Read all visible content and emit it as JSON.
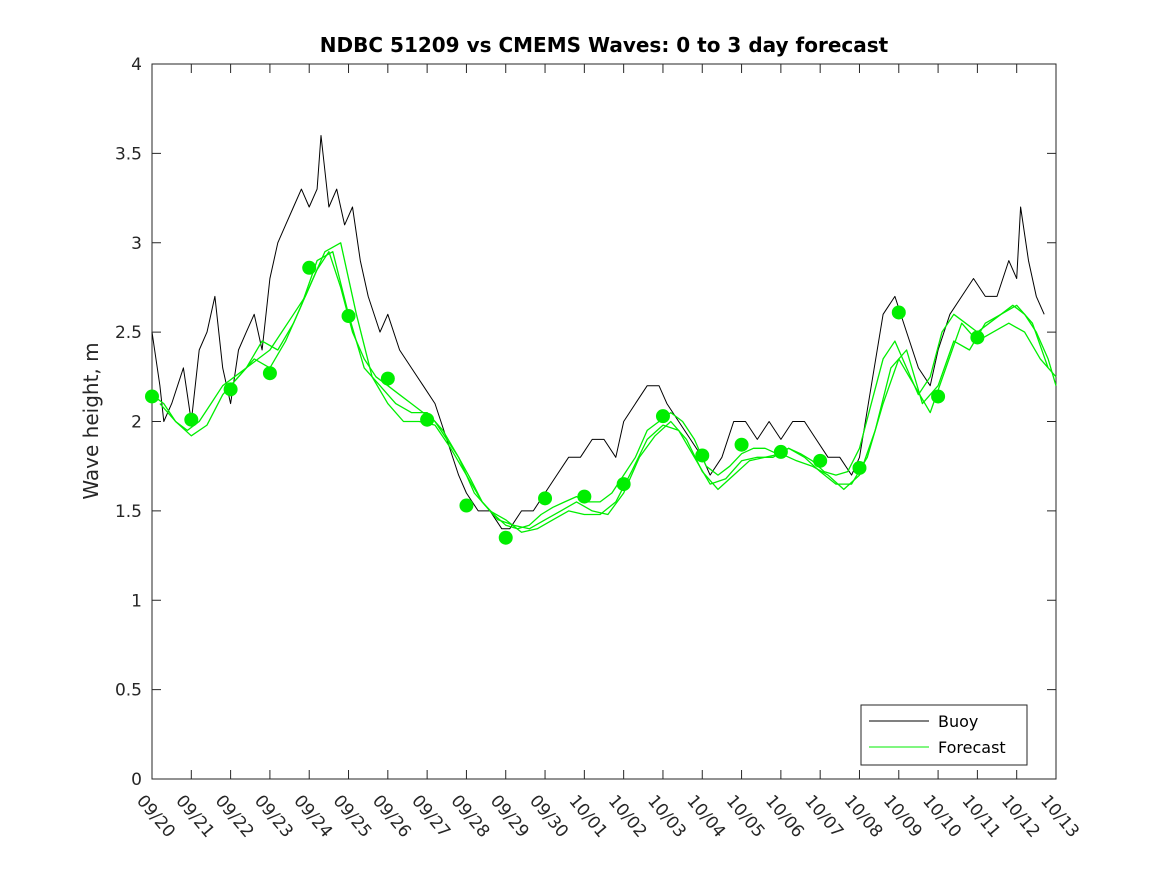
{
  "chart_data": {
    "type": "line",
    "title": "NDBC 51209 vs CMEMS Waves: 0 to 3 day forecast",
    "xlabel": "",
    "ylabel": "Wave height, m",
    "ylim": [
      0,
      4
    ],
    "y_ticks": [
      "0",
      "0.5",
      "1",
      "1.5",
      "2",
      "2.5",
      "3",
      "3.5",
      "4"
    ],
    "x_ticks": [
      "09/20",
      "09/21",
      "09/22",
      "09/23",
      "09/24",
      "09/25",
      "09/26",
      "09/27",
      "09/28",
      "09/29",
      "09/30",
      "10/01",
      "10/02",
      "10/03",
      "10/04",
      "10/05",
      "10/06",
      "10/07",
      "10/08",
      "10/09",
      "10/10",
      "10/11",
      "10/12",
      "10/13"
    ],
    "x_unit": "day index from 09/20",
    "xlim": [
      0,
      23
    ],
    "grid": false,
    "legend": {
      "placement": "bottom-right",
      "entries": [
        "Buoy",
        "Forecast"
      ]
    },
    "colors": {
      "buoy": "#000000",
      "forecast": "#00ee00",
      "axis": "#262626"
    },
    "series": [
      {
        "name": "Buoy",
        "x": [
          0,
          0.2,
          0.3,
          0.5,
          0.8,
          1.0,
          1.2,
          1.4,
          1.6,
          1.8,
          2.0,
          2.2,
          2.4,
          2.6,
          2.8,
          3.0,
          3.2,
          3.4,
          3.6,
          3.8,
          4.0,
          4.2,
          4.3,
          4.5,
          4.7,
          4.9,
          5.1,
          5.3,
          5.5,
          5.8,
          6.0,
          6.3,
          6.6,
          6.9,
          7.2,
          7.5,
          7.8,
          8.0,
          8.3,
          8.6,
          8.9,
          9.1,
          9.4,
          9.7,
          10.0,
          10.3,
          10.6,
          10.9,
          11.2,
          11.5,
          11.8,
          12.0,
          12.3,
          12.6,
          12.9,
          13.1,
          13.4,
          13.7,
          14.0,
          14.2,
          14.5,
          14.8,
          15.1,
          15.4,
          15.7,
          16.0,
          16.3,
          16.6,
          16.9,
          17.2,
          17.5,
          17.8,
          18.0,
          18.3,
          18.6,
          18.9,
          19.2,
          19.5,
          19.8,
          20.0,
          20.3,
          20.6,
          20.9,
          21.2,
          21.5,
          21.8,
          22.0,
          22.1,
          22.3,
          22.5,
          22.7
        ],
        "values": [
          2.5,
          2.2,
          2.0,
          2.1,
          2.3,
          2.0,
          2.4,
          2.5,
          2.7,
          2.3,
          2.1,
          2.4,
          2.5,
          2.6,
          2.4,
          2.8,
          3.0,
          3.1,
          3.2,
          3.3,
          3.2,
          3.3,
          3.6,
          3.2,
          3.3,
          3.1,
          3.2,
          2.9,
          2.7,
          2.5,
          2.6,
          2.4,
          2.3,
          2.2,
          2.1,
          1.9,
          1.7,
          1.6,
          1.5,
          1.5,
          1.4,
          1.4,
          1.5,
          1.5,
          1.6,
          1.7,
          1.8,
          1.8,
          1.9,
          1.9,
          1.8,
          2.0,
          2.1,
          2.2,
          2.2,
          2.1,
          2.0,
          1.9,
          1.8,
          1.7,
          1.8,
          2.0,
          2.0,
          1.9,
          2.0,
          1.9,
          2.0,
          2.0,
          1.9,
          1.8,
          1.8,
          1.7,
          1.8,
          2.2,
          2.6,
          2.7,
          2.5,
          2.3,
          2.2,
          2.4,
          2.6,
          2.7,
          2.8,
          2.7,
          2.7,
          2.9,
          2.8,
          3.2,
          2.9,
          2.7,
          2.6
        ]
      },
      {
        "name": "Forecast",
        "x": [
          0,
          0.3,
          0.6,
          0.9,
          1.2,
          1.5,
          1.8,
          2.1,
          2.4,
          2.7,
          3.0,
          3.3,
          3.6,
          3.9,
          4.2,
          4.5,
          4.8,
          5.1,
          5.4,
          5.7,
          6.0,
          6.3,
          6.6,
          6.9,
          7.2,
          7.5,
          7.8,
          8.1,
          8.4,
          8.7,
          9.0,
          9.3,
          9.6,
          9.9,
          10.2,
          10.5,
          10.8,
          11.1,
          11.4,
          11.7,
          12.0,
          12.3,
          12.6,
          12.9,
          13.2,
          13.5,
          13.8,
          14.1,
          14.4,
          14.7,
          15.0,
          15.3,
          15.6,
          15.9,
          16.2,
          16.5,
          16.8,
          17.1,
          17.4,
          17.7,
          18.0,
          18.3,
          18.6,
          18.9,
          19.2,
          19.5,
          19.8,
          20.1,
          20.4,
          20.7,
          21.0,
          21.3,
          21.6,
          21.9,
          22.2,
          22.5,
          22.8,
          23.0
        ],
        "values": [
          2.15,
          2.1,
          2.0,
          1.95,
          2.0,
          2.1,
          2.2,
          2.25,
          2.3,
          2.35,
          2.4,
          2.5,
          2.6,
          2.7,
          2.85,
          2.95,
          2.75,
          2.5,
          2.35,
          2.25,
          2.2,
          2.15,
          2.1,
          2.05,
          2.0,
          1.9,
          1.8,
          1.68,
          1.55,
          1.48,
          1.42,
          1.4,
          1.42,
          1.48,
          1.52,
          1.55,
          1.58,
          1.55,
          1.55,
          1.6,
          1.7,
          1.8,
          1.95,
          2.0,
          2.05,
          2.0,
          1.9,
          1.75,
          1.7,
          1.75,
          1.82,
          1.85,
          1.85,
          1.82,
          1.85,
          1.82,
          1.78,
          1.72,
          1.7,
          1.72,
          1.85,
          2.1,
          2.35,
          2.45,
          2.3,
          2.15,
          2.25,
          2.5,
          2.6,
          2.55,
          2.5,
          2.55,
          2.6,
          2.65,
          2.6,
          2.5,
          2.35,
          2.2
        ]
      },
      {
        "name": "",
        "x": [
          0.2,
          0.6,
          1.0,
          1.4,
          1.8,
          2.2,
          2.6,
          3.0,
          3.4,
          3.8,
          4.2,
          4.6,
          5.0,
          5.4,
          5.8,
          6.2,
          6.6,
          7.0,
          7.4,
          7.8,
          8.2,
          8.6,
          9.0,
          9.4,
          9.8,
          10.2,
          10.6,
          11.0,
          11.4,
          11.8,
          12.2,
          12.6,
          13.0,
          13.4,
          13.8,
          14.2,
          14.6,
          15.0,
          15.4,
          15.8,
          16.2,
          16.6,
          17.0,
          17.4,
          17.8,
          18.2,
          18.6,
          19.0,
          19.4,
          19.8,
          20.2,
          20.6,
          21.0,
          21.4,
          21.8,
          22.2,
          22.6,
          23.0
        ],
        "values": [
          2.1,
          2.0,
          1.92,
          1.98,
          2.15,
          2.25,
          2.35,
          2.3,
          2.45,
          2.65,
          2.9,
          2.95,
          2.6,
          2.3,
          2.2,
          2.1,
          2.05,
          2.05,
          1.95,
          1.8,
          1.6,
          1.5,
          1.45,
          1.38,
          1.4,
          1.45,
          1.5,
          1.48,
          1.48,
          1.55,
          1.72,
          1.9,
          1.98,
          1.95,
          1.8,
          1.65,
          1.68,
          1.78,
          1.8,
          1.8,
          1.85,
          1.8,
          1.72,
          1.65,
          1.65,
          1.8,
          2.1,
          2.35,
          2.2,
          2.05,
          2.3,
          2.55,
          2.45,
          2.5,
          2.55,
          2.5,
          2.35,
          2.25
        ]
      },
      {
        "name": "",
        "x": [
          2.0,
          2.4,
          2.8,
          3.2,
          3.6,
          4.0,
          4.4,
          4.8,
          5.2,
          5.6,
          6.0,
          6.4,
          6.8,
          7.2,
          7.6,
          8.0,
          8.4,
          8.8,
          9.2,
          9.6,
          10.0,
          10.4,
          10.8,
          11.2,
          11.6,
          12.0,
          12.4,
          12.8,
          13.2,
          13.6,
          14.0,
          14.4,
          14.8,
          15.2,
          15.6,
          16.0,
          16.4,
          16.8,
          17.2,
          17.6,
          18.0,
          18.4,
          18.8,
          19.2,
          19.6,
          20.0,
          20.4,
          20.8,
          21.2,
          21.6,
          22.0,
          22.4,
          22.8
        ],
        "values": [
          2.2,
          2.3,
          2.45,
          2.4,
          2.55,
          2.75,
          2.95,
          3.0,
          2.6,
          2.25,
          2.1,
          2.0,
          2.0,
          1.98,
          1.85,
          1.7,
          1.55,
          1.45,
          1.42,
          1.4,
          1.45,
          1.5,
          1.55,
          1.5,
          1.48,
          1.6,
          1.8,
          1.92,
          2.0,
          1.9,
          1.72,
          1.62,
          1.7,
          1.78,
          1.8,
          1.82,
          1.78,
          1.75,
          1.7,
          1.62,
          1.7,
          1.95,
          2.3,
          2.4,
          2.1,
          2.2,
          2.45,
          2.4,
          2.55,
          2.6,
          2.65,
          2.55,
          2.3
        ]
      }
    ],
    "forecast_markers": {
      "x": [
        0,
        1,
        2,
        3,
        4,
        5,
        6,
        7,
        8,
        9,
        10,
        11,
        12,
        13,
        14,
        15,
        16,
        17,
        18,
        19,
        20,
        21
      ],
      "values": [
        2.14,
        2.01,
        2.18,
        2.27,
        2.86,
        2.59,
        2.24,
        2.01,
        1.53,
        1.35,
        1.57,
        1.58,
        1.65,
        2.03,
        1.81,
        1.87,
        1.83,
        1.78,
        1.74,
        2.61,
        2.14,
        2.47
      ]
    }
  }
}
